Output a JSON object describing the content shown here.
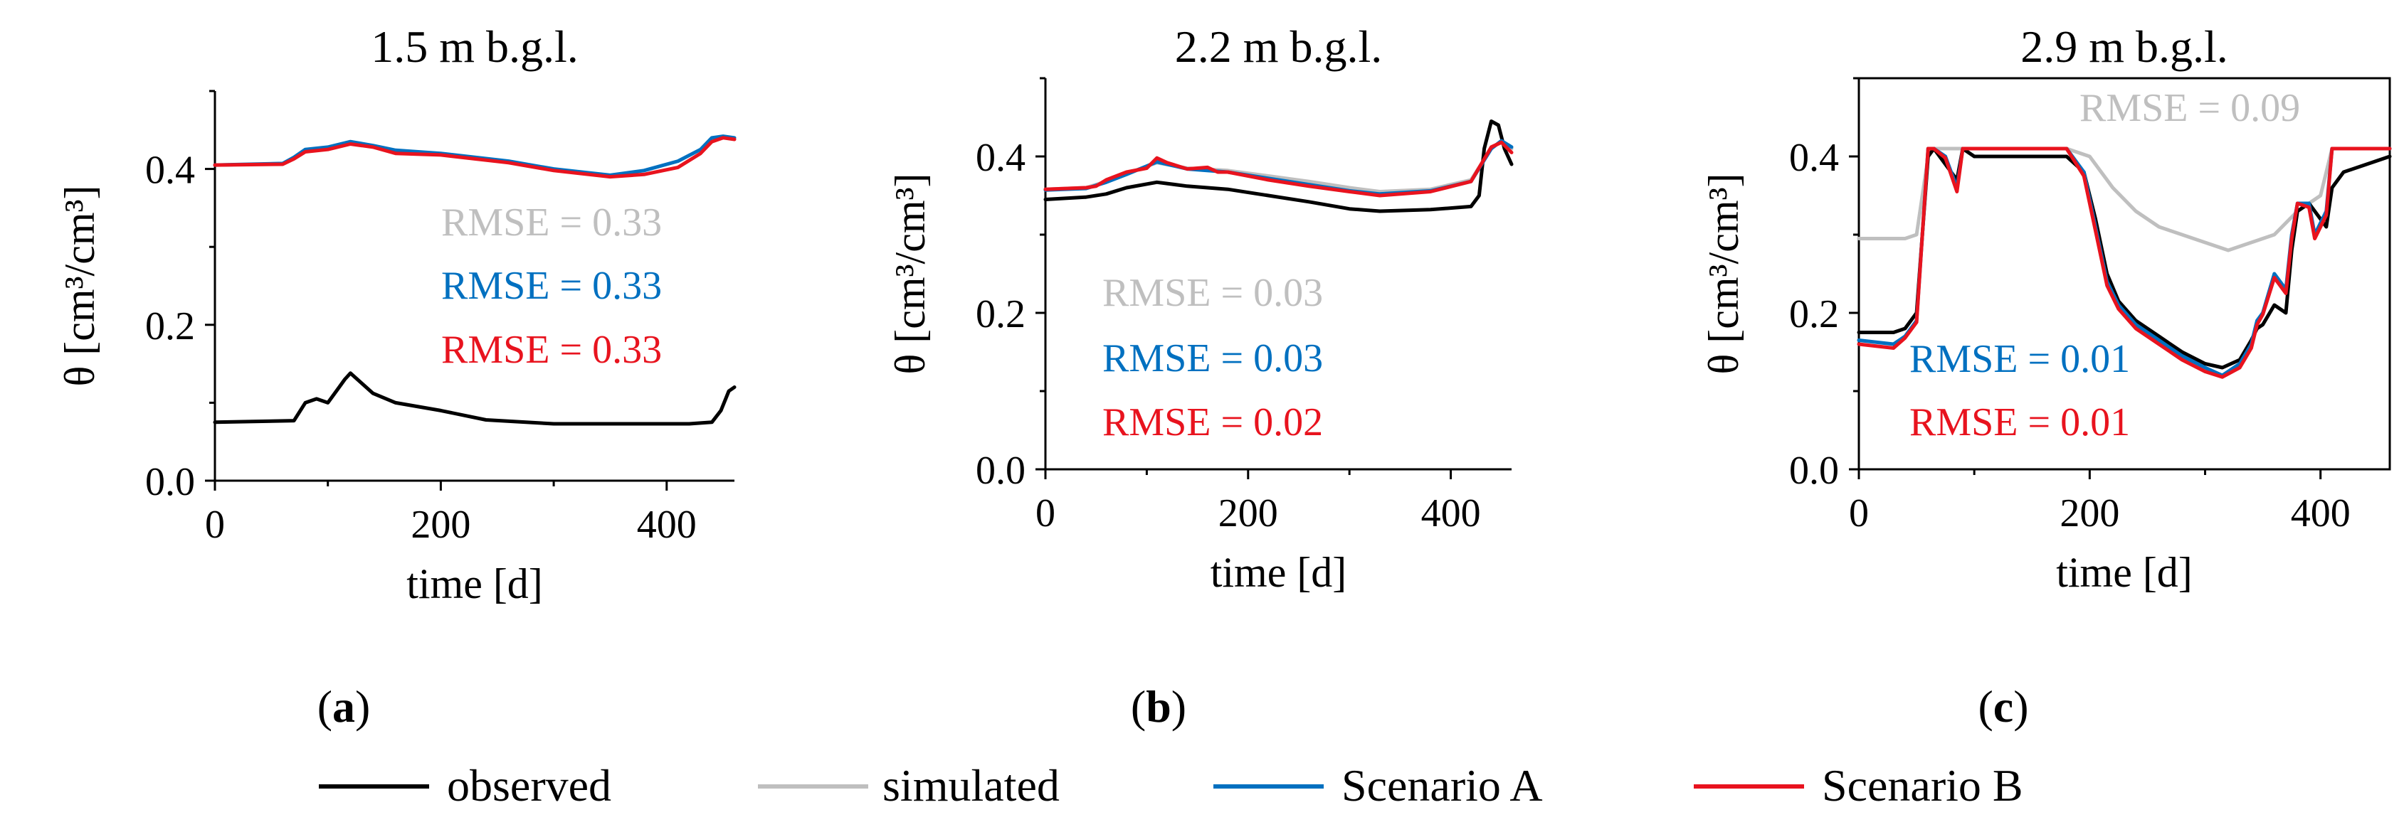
{
  "figure": {
    "legend": [
      {
        "label": "observed",
        "color": "#000000"
      },
      {
        "label": "simulated",
        "color": "#bfbfbf"
      },
      {
        "label": "Scenario A",
        "color": "#0070c0"
      },
      {
        "label": "Scenario B",
        "color": "#e8131e"
      }
    ]
  },
  "chart_data": [
    {
      "type": "line",
      "panel": "(a)",
      "panel_letter": "a",
      "title": "1.5 m b.g.l.",
      "xlabel": "time [d]",
      "ylabel": "θ [cm³/cm³]",
      "xlim": [
        0,
        460
      ],
      "ylim": [
        0.0,
        0.5
      ],
      "xticks": [
        0,
        200,
        400
      ],
      "yticks": [
        0.0,
        0.2,
        0.4
      ],
      "ytick_labels": [
        "0.0",
        "0.2",
        "0.4"
      ],
      "series": [
        {
          "name": "observed",
          "color": "#000000",
          "x": [
            0,
            70,
            80,
            90,
            100,
            110,
            115,
            120,
            130,
            140,
            160,
            200,
            240,
            300,
            360,
            420,
            440,
            448,
            455,
            460
          ],
          "y": [
            0.075,
            0.077,
            0.1,
            0.105,
            0.1,
            0.12,
            0.13,
            0.138,
            0.125,
            0.112,
            0.1,
            0.09,
            0.078,
            0.073,
            0.073,
            0.073,
            0.075,
            0.09,
            0.115,
            0.12
          ]
        },
        {
          "name": "Scenario A",
          "color": "#0070c0",
          "x": [
            0,
            60,
            70,
            80,
            100,
            120,
            140,
            160,
            200,
            260,
            300,
            350,
            380,
            410,
            430,
            440,
            450,
            460
          ],
          "y": [
            0.405,
            0.407,
            0.415,
            0.425,
            0.428,
            0.435,
            0.43,
            0.424,
            0.42,
            0.41,
            0.4,
            0.392,
            0.398,
            0.41,
            0.425,
            0.44,
            0.442,
            0.44
          ]
        },
        {
          "name": "Scenario B",
          "color": "#e8131e",
          "x": [
            0,
            60,
            70,
            80,
            100,
            120,
            140,
            160,
            200,
            260,
            300,
            350,
            380,
            410,
            430,
            440,
            450,
            460
          ],
          "y": [
            0.405,
            0.406,
            0.413,
            0.422,
            0.425,
            0.432,
            0.428,
            0.42,
            0.418,
            0.408,
            0.398,
            0.39,
            0.393,
            0.402,
            0.42,
            0.435,
            0.44,
            0.438
          ]
        }
      ],
      "annotations": [
        {
          "text": "RMSE = 0.33",
          "color": "#bfbfbf"
        },
        {
          "text": "RMSE = 0.33",
          "color": "#0070c0"
        },
        {
          "text": "RMSE = 0.33",
          "color": "#e8131e"
        }
      ]
    },
    {
      "type": "line",
      "panel": "(b)",
      "panel_letter": "b",
      "title": "2.2 m b.g.l.",
      "xlabel": "time [d]",
      "ylabel": "θ [cm³/cm³]",
      "xlim": [
        0,
        460
      ],
      "ylim": [
        0.0,
        0.5
      ],
      "xticks": [
        0,
        200,
        400
      ],
      "yticks": [
        0.0,
        0.2,
        0.4
      ],
      "ytick_labels": [
        "0.0",
        "0.2",
        "0.4"
      ],
      "series": [
        {
          "name": "observed",
          "color": "#000000",
          "x": [
            0,
            40,
            60,
            80,
            110,
            140,
            180,
            220,
            260,
            300,
            330,
            380,
            420,
            428,
            433,
            440,
            447,
            453,
            460
          ],
          "y": [
            0.345,
            0.348,
            0.352,
            0.36,
            0.367,
            0.362,
            0.358,
            0.35,
            0.342,
            0.333,
            0.33,
            0.332,
            0.336,
            0.35,
            0.41,
            0.445,
            0.44,
            0.41,
            0.39
          ]
        },
        {
          "name": "simulated",
          "color": "#bfbfbf",
          "x": [
            0,
            40,
            60,
            80,
            110,
            140,
            180,
            220,
            260,
            300,
            330,
            380,
            420,
            440,
            450,
            460
          ],
          "y": [
            0.358,
            0.36,
            0.368,
            0.378,
            0.392,
            0.385,
            0.382,
            0.375,
            0.368,
            0.36,
            0.355,
            0.358,
            0.37,
            0.41,
            0.42,
            0.41
          ]
        },
        {
          "name": "Scenario A",
          "color": "#0070c0",
          "x": [
            0,
            40,
            60,
            80,
            110,
            140,
            180,
            220,
            260,
            300,
            330,
            380,
            420,
            440,
            450,
            460
          ],
          "y": [
            0.357,
            0.359,
            0.367,
            0.377,
            0.393,
            0.384,
            0.38,
            0.372,
            0.364,
            0.356,
            0.352,
            0.356,
            0.368,
            0.41,
            0.42,
            0.412
          ]
        },
        {
          "name": "Scenario B",
          "color": "#e8131e",
          "x": [
            0,
            40,
            50,
            60,
            80,
            100,
            110,
            120,
            140,
            160,
            170,
            180,
            220,
            260,
            300,
            330,
            380,
            420,
            440,
            450,
            460
          ],
          "y": [
            0.358,
            0.36,
            0.362,
            0.37,
            0.38,
            0.385,
            0.398,
            0.392,
            0.384,
            0.386,
            0.38,
            0.38,
            0.37,
            0.362,
            0.355,
            0.35,
            0.355,
            0.368,
            0.412,
            0.418,
            0.405
          ]
        }
      ],
      "annotations": [
        {
          "text": "RMSE = 0.03",
          "color": "#bfbfbf"
        },
        {
          "text": "RMSE = 0.03",
          "color": "#0070c0"
        },
        {
          "text": "RMSE = 0.02",
          "color": "#e8131e"
        }
      ]
    },
    {
      "type": "line",
      "panel": "(c)",
      "panel_letter": "c",
      "title": "2.9 m b.g.l.",
      "xlabel": "time [d]",
      "ylabel": "θ [cm³/cm³]",
      "xlim": [
        0,
        460
      ],
      "ylim": [
        0.0,
        0.5
      ],
      "xticks": [
        0,
        200,
        400
      ],
      "yticks": [
        0.0,
        0.2,
        0.4
      ],
      "ytick_labels": [
        "0.0",
        "0.2",
        "0.4"
      ],
      "series": [
        {
          "name": "observed",
          "color": "#000000",
          "x": [
            0,
            30,
            40,
            50,
            55,
            60,
            65,
            75,
            85,
            90,
            95,
            100,
            180,
            195,
            205,
            215,
            225,
            240,
            260,
            280,
            300,
            315,
            330,
            340,
            345,
            350,
            360,
            370,
            375,
            380,
            390,
            400,
            405,
            410,
            420,
            440,
            460
          ],
          "y": [
            0.175,
            0.175,
            0.18,
            0.2,
            0.3,
            0.4,
            0.41,
            0.39,
            0.37,
            0.41,
            0.405,
            0.4,
            0.4,
            0.38,
            0.32,
            0.25,
            0.215,
            0.19,
            0.17,
            0.15,
            0.135,
            0.13,
            0.14,
            0.165,
            0.18,
            0.185,
            0.21,
            0.2,
            0.28,
            0.33,
            0.34,
            0.32,
            0.31,
            0.36,
            0.38,
            0.39,
            0.4
          ]
        },
        {
          "name": "simulated",
          "color": "#bfbfbf",
          "x": [
            0,
            40,
            50,
            55,
            60,
            65,
            100,
            180,
            200,
            220,
            240,
            260,
            280,
            300,
            320,
            340,
            360,
            380,
            400,
            410,
            430,
            460
          ],
          "y": [
            0.295,
            0.295,
            0.3,
            0.35,
            0.4,
            0.41,
            0.41,
            0.41,
            0.4,
            0.36,
            0.33,
            0.31,
            0.3,
            0.29,
            0.28,
            0.29,
            0.3,
            0.33,
            0.35,
            0.41,
            0.41,
            0.41
          ]
        },
        {
          "name": "Scenario A",
          "color": "#0070c0",
          "x": [
            0,
            30,
            40,
            50,
            55,
            60,
            65,
            75,
            85,
            90,
            95,
            180,
            195,
            205,
            215,
            225,
            240,
            260,
            280,
            300,
            315,
            330,
            340,
            345,
            350,
            360,
            370,
            375,
            380,
            390,
            395,
            405,
            410,
            460
          ],
          "y": [
            0.165,
            0.16,
            0.17,
            0.19,
            0.3,
            0.41,
            0.41,
            0.4,
            0.36,
            0.41,
            0.41,
            0.41,
            0.38,
            0.31,
            0.24,
            0.21,
            0.185,
            0.165,
            0.145,
            0.13,
            0.12,
            0.135,
            0.16,
            0.19,
            0.2,
            0.25,
            0.23,
            0.3,
            0.34,
            0.34,
            0.3,
            0.33,
            0.41,
            0.41
          ]
        },
        {
          "name": "Scenario B",
          "color": "#e8131e",
          "x": [
            0,
            30,
            40,
            50,
            55,
            60,
            65,
            75,
            85,
            90,
            95,
            180,
            195,
            205,
            215,
            225,
            240,
            260,
            280,
            300,
            315,
            330,
            340,
            345,
            350,
            360,
            370,
            375,
            380,
            390,
            395,
            405,
            410,
            460
          ],
          "y": [
            0.16,
            0.155,
            0.168,
            0.188,
            0.3,
            0.41,
            0.41,
            0.398,
            0.355,
            0.41,
            0.41,
            0.41,
            0.375,
            0.305,
            0.235,
            0.205,
            0.18,
            0.16,
            0.14,
            0.125,
            0.118,
            0.13,
            0.155,
            0.185,
            0.198,
            0.245,
            0.225,
            0.295,
            0.34,
            0.335,
            0.295,
            0.325,
            0.41,
            0.41
          ]
        }
      ],
      "annotations": [
        {
          "text": "RMSE = 0.09",
          "color": "#bfbfbf"
        },
        {
          "text": "RMSE = 0.01",
          "color": "#0070c0"
        },
        {
          "text": "RMSE = 0.01",
          "color": "#e8131e"
        }
      ]
    }
  ]
}
